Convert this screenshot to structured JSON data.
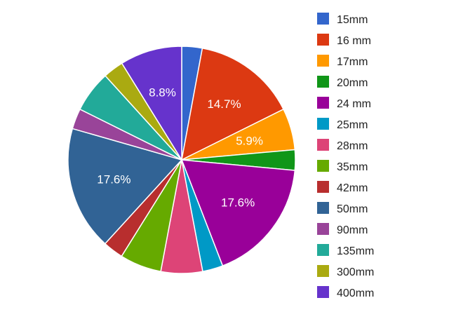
{
  "chart_data": {
    "type": "pie",
    "title": "",
    "legend_position": "right",
    "start_angle_deg": 0,
    "direction": "clockwise",
    "slices": [
      {
        "label": "15mm",
        "value": 2.9,
        "color": "#3366cc",
        "data_label": ""
      },
      {
        "label": "16 mm",
        "value": 14.7,
        "color": "#dc3912",
        "data_label": "14.7%"
      },
      {
        "label": "17mm",
        "value": 5.9,
        "color": "#ff9900",
        "data_label": "5.9%"
      },
      {
        "label": "20mm",
        "value": 2.9,
        "color": "#109618",
        "data_label": ""
      },
      {
        "label": "24 mm",
        "value": 17.6,
        "color": "#990099",
        "data_label": "17.6%"
      },
      {
        "label": "25mm",
        "value": 2.9,
        "color": "#0099c6",
        "data_label": ""
      },
      {
        "label": "28mm",
        "value": 5.9,
        "color": "#dd4477",
        "data_label": ""
      },
      {
        "label": "35mm",
        "value": 5.9,
        "color": "#66aa00",
        "data_label": ""
      },
      {
        "label": "42mm",
        "value": 2.9,
        "color": "#b82e2e",
        "data_label": ""
      },
      {
        "label": "50mm",
        "value": 17.6,
        "color": "#316395",
        "data_label": "17.6%"
      },
      {
        "label": "90mm",
        "value": 2.9,
        "color": "#994499",
        "data_label": ""
      },
      {
        "label": "135mm",
        "value": 5.9,
        "color": "#22aa99",
        "data_label": ""
      },
      {
        "label": "300mm",
        "value": 2.9,
        "color": "#aaaa11",
        "data_label": ""
      },
      {
        "label": "400mm",
        "value": 8.8,
        "color": "#6633cc",
        "data_label": "8.8%"
      }
    ]
  }
}
